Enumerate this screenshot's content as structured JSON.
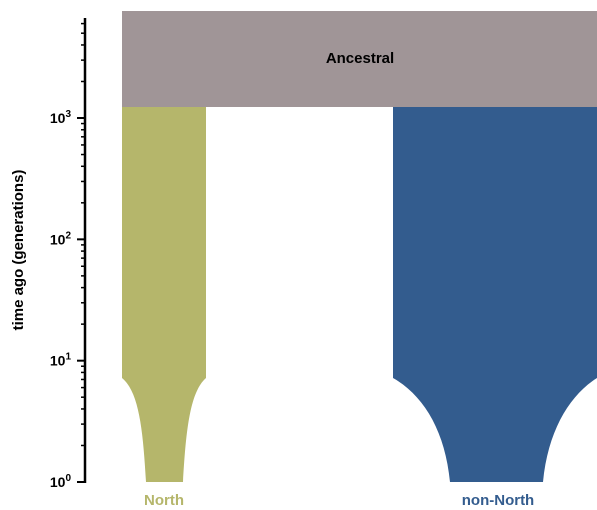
{
  "chart_data": {
    "type": "demography",
    "ylabel": "time ago (generations)",
    "yscale": "log",
    "ylim": [
      1,
      6300
    ],
    "y_ticks": [
      {
        "value": 1,
        "base": "10",
        "exp": "0"
      },
      {
        "value": 10,
        "base": "10",
        "exp": "1"
      },
      {
        "value": 100,
        "base": "10",
        "exp": "2"
      },
      {
        "value": 1000,
        "base": "10",
        "exp": "3"
      }
    ],
    "ancestral": {
      "name": "Ancestral",
      "start_time": 1300,
      "color": "#a09597"
    },
    "populations": [
      {
        "name": "North",
        "color": "#b5b66b",
        "split_time": 1300,
        "growth_start_time": 7.2
      },
      {
        "name": "non-North",
        "color": "#335c8e",
        "split_time": 1300,
        "growth_start_time": 7.2
      }
    ]
  }
}
